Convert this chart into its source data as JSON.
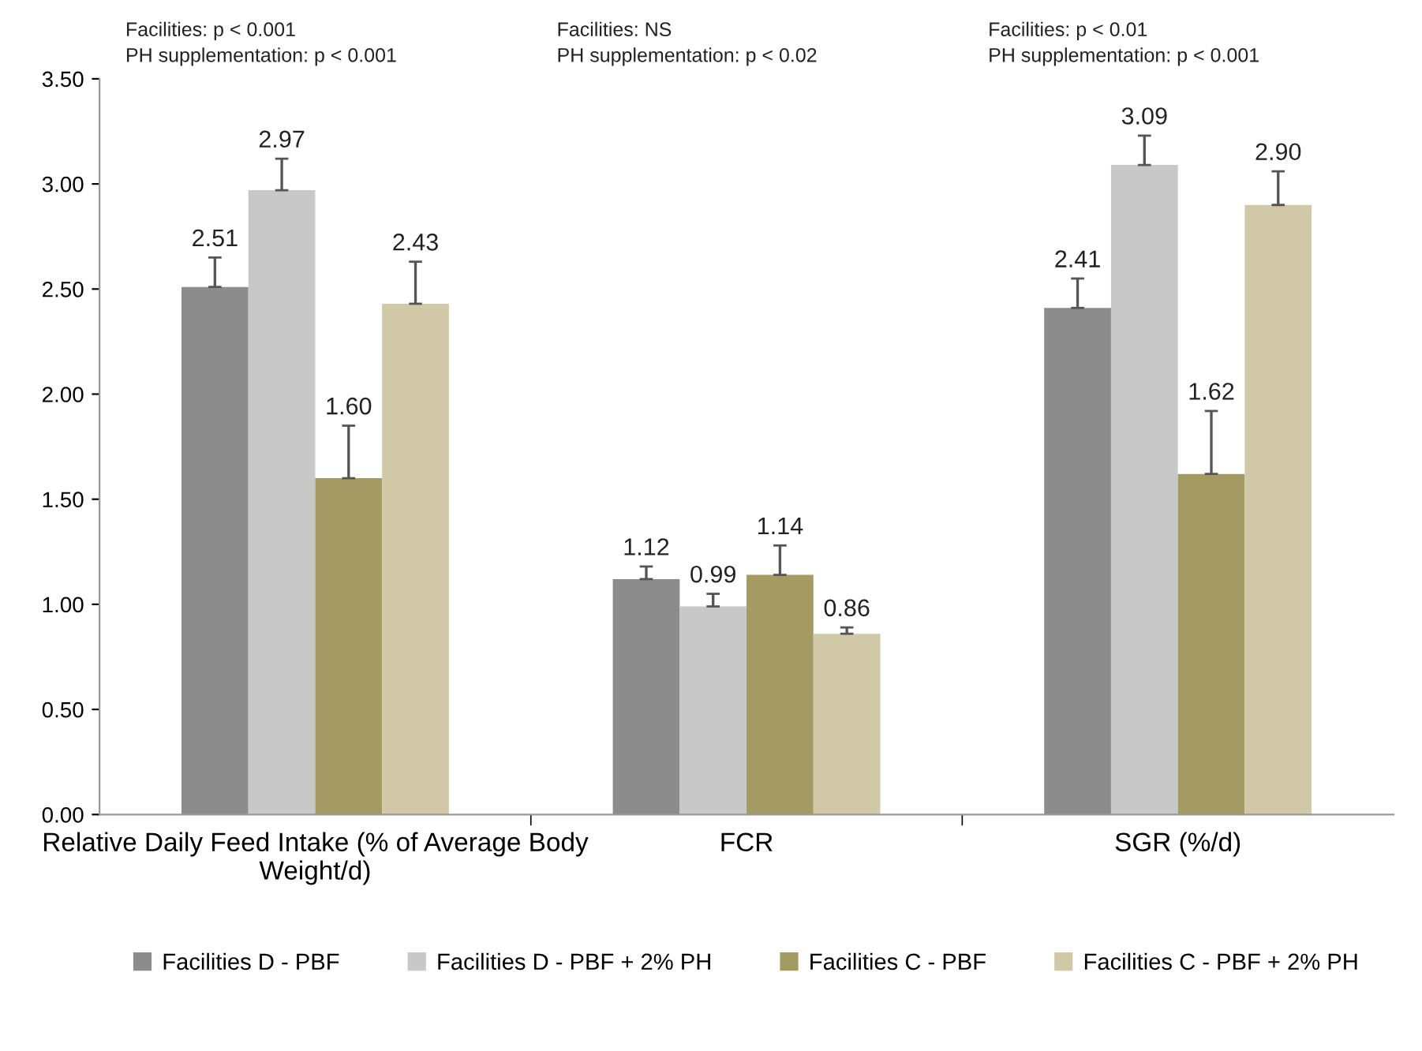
{
  "chart_data": {
    "type": "bar",
    "categories": [
      "Relative Daily Feed Intake (% of Average Body Weight/d)",
      "FCR",
      "SGR (%/d)"
    ],
    "series": [
      {
        "name": "Facilities D - PBF",
        "color": "#8c8c8c",
        "values": [
          2.51,
          1.12,
          2.41
        ],
        "value_labels": [
          "2.51",
          "1.12",
          "2.41"
        ],
        "errors": [
          [
            2.51,
            2.65
          ],
          [
            1.12,
            1.18
          ],
          [
            2.41,
            2.55
          ]
        ]
      },
      {
        "name": "Facilities D - PBF + 2% PH",
        "color": "#c8c8c8",
        "values": [
          2.97,
          0.99,
          3.09
        ],
        "value_labels": [
          "2.97",
          "0.99",
          "3.09"
        ],
        "errors": [
          [
            2.97,
            3.12
          ],
          [
            0.99,
            1.05
          ],
          [
            3.09,
            3.23
          ]
        ]
      },
      {
        "name": "Facilities C - PBF",
        "color": "#a39a64",
        "values": [
          1.6,
          1.14,
          1.62
        ],
        "value_labels": [
          "1.60",
          "1.14",
          "1.62"
        ],
        "errors": [
          [
            1.6,
            1.85
          ],
          [
            1.14,
            1.28
          ],
          [
            1.62,
            1.92
          ]
        ]
      },
      {
        "name": "Facilities C - PBF + 2% PH",
        "color": "#d0c8a6",
        "values": [
          2.43,
          0.86,
          2.9
        ],
        "value_labels": [
          "2.43",
          "0.86",
          "2.90"
        ],
        "errors": [
          [
            2.43,
            2.63
          ],
          [
            0.86,
            0.89
          ],
          [
            2.9,
            3.06
          ]
        ]
      }
    ],
    "ylim": [
      0,
      3.5
    ],
    "yticks": [
      {
        "value": 0,
        "label": "0.00"
      },
      {
        "value": 0.5,
        "label": "0.50"
      },
      {
        "value": 1,
        "label": "1.00"
      },
      {
        "value": 1.5,
        "label": "1.50"
      },
      {
        "value": 2,
        "label": "2.00"
      },
      {
        "value": 2.5,
        "label": "2.50"
      },
      {
        "value": 3,
        "label": "3.00"
      },
      {
        "value": 3.5,
        "label": "3.50"
      }
    ],
    "annotations": [
      "Facilities: p < 0.001",
      "PH supplementation: p < 0.001",
      "Facilities: NS",
      "PH supplementation: p < 0.02",
      "Facilities: p < 0.01",
      "PH supplementation: p < 0.001"
    ],
    "legend": "bottom",
    "grid": false
  }
}
